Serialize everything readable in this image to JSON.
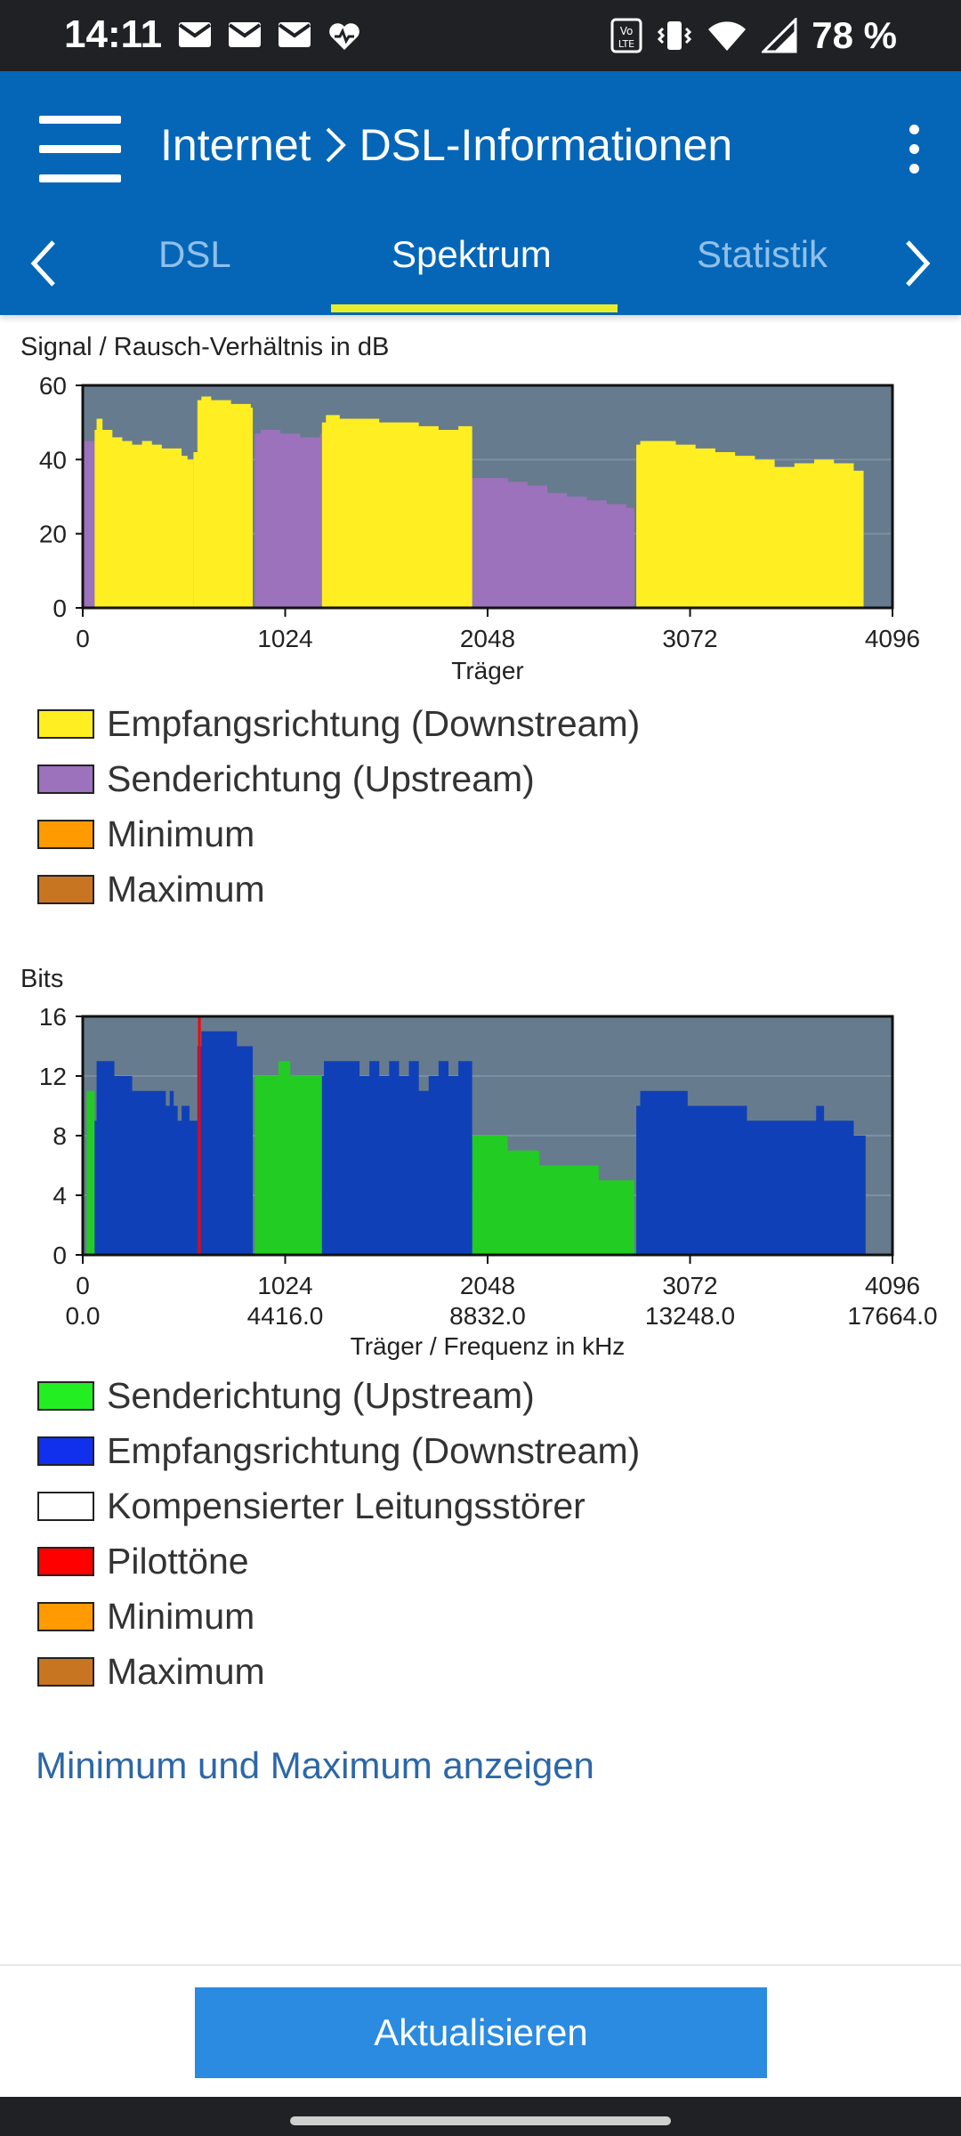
{
  "status_bar": {
    "time": "14:11",
    "battery": "78 %",
    "notification_icons": [
      "mail-icon",
      "mail-icon",
      "mail-icon",
      "heart-pulse-icon"
    ],
    "system_icons": [
      "volte-icon",
      "vibrate-icon",
      "wifi-icon",
      "signal-icon"
    ]
  },
  "header": {
    "breadcrumb": [
      "Internet",
      "DSL-Informationen"
    ],
    "separator": ">",
    "tabs": [
      {
        "label": "DSL",
        "active": false
      },
      {
        "label": "Spektrum",
        "active": true
      },
      {
        "label": "Statistik",
        "active": false
      }
    ],
    "colors": {
      "bar": "#0566b7",
      "indicator": "#e8ef2a"
    }
  },
  "chart_data": [
    {
      "type": "area",
      "title": "Signal / Rausch-Verhältnis in dB",
      "xlabel": "Träger",
      "xticks": [
        "0",
        "1024",
        "2048",
        "3072",
        "4096"
      ],
      "yticks": [
        "0",
        "20",
        "40",
        "60"
      ],
      "xlim": [
        0,
        4096
      ],
      "ylim": [
        0,
        60
      ],
      "background": "#667b8d",
      "series": [
        {
          "name": "Senderichtung (Upstream)",
          "color": "#9b72bb",
          "segments": [
            {
              "x": [
                0,
                60
              ],
              "y": [
                45,
                45
              ]
            },
            {
              "x": [
                870,
                900,
                1000,
                1100,
                1200,
                1210
              ],
              "y": [
                47,
                48,
                47,
                46,
                47,
                48
              ]
            },
            {
              "x": [
                1970,
                2050,
                2150,
                2250,
                2350,
                2450,
                2550,
                2650,
                2750,
                2790
              ],
              "y": [
                35,
                35,
                34,
                33,
                31,
                30,
                29,
                28,
                27,
                25
              ]
            }
          ]
        },
        {
          "name": "Empfangsrichtung (Downstream)",
          "color": "#ffee22",
          "segments": [
            {
              "x": [
                60,
                70,
                100,
                150,
                200,
                250,
                300,
                350,
                400,
                450,
                500,
                530,
                560
              ],
              "y": [
                48,
                51,
                48,
                46,
                45,
                44,
                45,
                44,
                43,
                43,
                41,
                40,
                42
              ]
            },
            {
              "x": [
                560,
                580,
                600,
                650,
                700,
                750,
                800,
                850,
                860
              ],
              "y": [
                42,
                56,
                57,
                56,
                56,
                55,
                55,
                54,
                53
              ]
            },
            {
              "x": [
                1210,
                1230,
                1300,
                1400,
                1500,
                1600,
                1700,
                1800,
                1900,
                1970
              ],
              "y": [
                50,
                52,
                51,
                51,
                50,
                50,
                49,
                48,
                49,
                48
              ]
            },
            {
              "x": [
                2800,
                2820,
                2900,
                3000,
                3100,
                3200,
                3300,
                3400,
                3500,
                3600,
                3700,
                3800,
                3900,
                3950
              ],
              "y": [
                44,
                45,
                45,
                44,
                43,
                42,
                41,
                40,
                38,
                39,
                40,
                39,
                37,
                35
              ]
            }
          ]
        }
      ],
      "legend": [
        {
          "label": "Empfangsrichtung (Downstream)",
          "color": "#ffee22"
        },
        {
          "label": "Senderichtung (Upstream)",
          "color": "#9b72bb"
        },
        {
          "label": "Minimum",
          "color": "#ff9a00"
        },
        {
          "label": "Maximum",
          "color": "#c87522"
        }
      ]
    },
    {
      "type": "area",
      "title": "Bits",
      "xlabel": "Träger / Frequenz in kHz",
      "xticks": [
        "0",
        "1024",
        "2048",
        "3072",
        "4096"
      ],
      "xticks_freq": [
        "0.0",
        "4416.0",
        "8832.0",
        "13248.0",
        "17664.0"
      ],
      "yticks": [
        "0",
        "4",
        "8",
        "12",
        "16"
      ],
      "xlim": [
        0,
        4096
      ],
      "ylim": [
        0,
        16
      ],
      "background": "#667b8d",
      "series": [
        {
          "name": "Senderichtung (Upstream)",
          "color": "#22cc22",
          "segments": [
            {
              "x": [
                20,
                60
              ],
              "y": [
                11,
                11
              ]
            },
            {
              "x": [
                870,
                950,
                990,
                1000,
                1050,
                1210
              ],
              "y": [
                12,
                12,
                13,
                13,
                12,
                12
              ]
            },
            {
              "x": [
                1970,
                2140,
                2150,
                2300,
                2310,
                2600,
                2610,
                2730,
                2790
              ],
              "y": [
                8,
                8,
                7,
                7,
                6,
                6,
                5,
                5,
                4
              ]
            }
          ]
        },
        {
          "name": "Empfangsrichtung (Downstream)",
          "color": "#1040b8",
          "segments": [
            {
              "x": [
                60,
                70,
                150,
                160,
                240,
                250,
                300,
                400,
                420,
                440,
                460,
                480,
                500,
                540,
                580
              ],
              "y": [
                9,
                13,
                13,
                12,
                12,
                11,
                11,
                11,
                10,
                11,
                10,
                9,
                10,
                9,
                12
              ]
            },
            {
              "x": [
                580,
                600,
                700,
                760,
                780,
                850,
                860
              ],
              "y": [
                14,
                15,
                15,
                15,
                14,
                14,
                14
              ]
            },
            {
              "x": [
                1210,
                1220,
                1350,
                1400,
                1450,
                1500,
                1550,
                1600,
                1650,
                1700,
                1750,
                1800,
                1850,
                1900,
                1970
              ],
              "y": [
                12,
                13,
                13,
                12,
                13,
                12,
                13,
                12,
                13,
                11,
                12,
                13,
                12,
                13,
                12
              ]
            },
            {
              "x": [
                2800,
                2820,
                3050,
                3060,
                3350,
                3360,
                3700,
                3710,
                3750,
                3800,
                3900,
                3960
              ],
              "y": [
                10,
                11,
                11,
                10,
                10,
                9,
                9,
                10,
                9,
                9,
                8,
                8
              ]
            }
          ]
        },
        {
          "name": "Pilottöne",
          "color": "#ff0000",
          "markers": [
            590
          ]
        }
      ],
      "legend": [
        {
          "label": "Senderichtung (Upstream)",
          "color": "#22ee22"
        },
        {
          "label": "Empfangsrichtung (Downstream)",
          "color": "#1030ee"
        },
        {
          "label": "Kompensierter Leitungsstörer",
          "color": "#ffffff"
        },
        {
          "label": "Pilottöne",
          "color": "#ff0000"
        },
        {
          "label": "Minimum",
          "color": "#ff9a00"
        },
        {
          "label": "Maximum",
          "color": "#c87522"
        }
      ]
    }
  ],
  "actions": {
    "toggle_minmax": "Minimum und Maximum anzeigen",
    "refresh": "Aktualisieren"
  }
}
